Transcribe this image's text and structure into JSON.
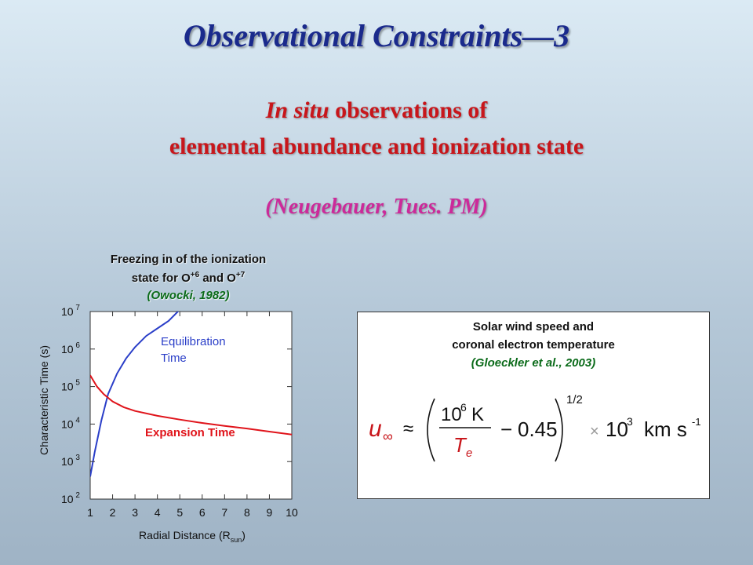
{
  "title": "Observational Constraints—3",
  "subtitle": {
    "line1_italic": "In situ",
    "line1_rest": " observations of",
    "line2": "elemental abundance and ionization state"
  },
  "reference": "(Neugebauer, Tues. PM)",
  "left_chart": {
    "title_line1": "Freezing in of the ionization",
    "title_line2_a": "state for O",
    "title_line2_sup1": "+6",
    "title_line2_b": " and O",
    "title_line2_sup2": "+7",
    "citation": "(Owocki, 1982)",
    "ylabel": "Characteristic Time (s)",
    "xlabel_main": "Radial Distance (R",
    "xlabel_sub": "sun",
    "xlabel_end": ")",
    "series_equilibration_label_1": "Equilibration",
    "series_equilibration_label_2": "Time",
    "series_expansion_label": "Expansion Time"
  },
  "right_box": {
    "title_line1": "Solar wind speed and",
    "title_line2": "coronal electron temperature",
    "citation": "(Gloeckler et al., 2003)",
    "formula": {
      "lhs": "u",
      "lhs_sub": "∞",
      "approx": "≈",
      "numerator": "10",
      "numerator_exp": "6",
      "numerator_unit": "K",
      "denominator": "T",
      "denominator_sub": "e",
      "minus": "−",
      "constant": "0.45",
      "power": "1/2",
      "times": "×",
      "scale": "10",
      "scale_exp": "3",
      "unit": "km s",
      "unit_exp": "-1"
    }
  },
  "chart_data": {
    "type": "line",
    "xlim": [
      1,
      10
    ],
    "ylim_log10": [
      2,
      7
    ],
    "y_scale": "log",
    "x_ticks": [
      "1",
      "2",
      "3",
      "4",
      "5",
      "6",
      "7",
      "8",
      "9",
      "10"
    ],
    "y_ticks": [
      {
        "base": "10",
        "exp": "2"
      },
      {
        "base": "10",
        "exp": "3"
      },
      {
        "base": "10",
        "exp": "4"
      },
      {
        "base": "10",
        "exp": "5"
      },
      {
        "base": "10",
        "exp": "6"
      },
      {
        "base": "10",
        "exp": "7"
      }
    ],
    "series": [
      {
        "name": "Equilibration Time",
        "color": "#2a3ec8",
        "x": [
          1.0,
          1.2,
          1.5,
          1.8,
          2.2,
          2.6,
          3.0,
          3.5,
          4.0,
          4.5,
          5.0
        ],
        "y": [
          2.6,
          3.25,
          4.1,
          4.8,
          5.35,
          5.75,
          6.05,
          6.35,
          6.55,
          6.75,
          7.05
        ]
      },
      {
        "name": "Expansion Time",
        "color": "#e0141b",
        "x": [
          1.0,
          1.3,
          1.6,
          2.0,
          2.5,
          3.0,
          4.0,
          5.0,
          6.0,
          7.0,
          8.0,
          9.0,
          10.0
        ],
        "y": [
          5.3,
          5.0,
          4.8,
          4.6,
          4.45,
          4.35,
          4.22,
          4.12,
          4.03,
          3.95,
          3.88,
          3.8,
          3.72
        ]
      }
    ]
  }
}
